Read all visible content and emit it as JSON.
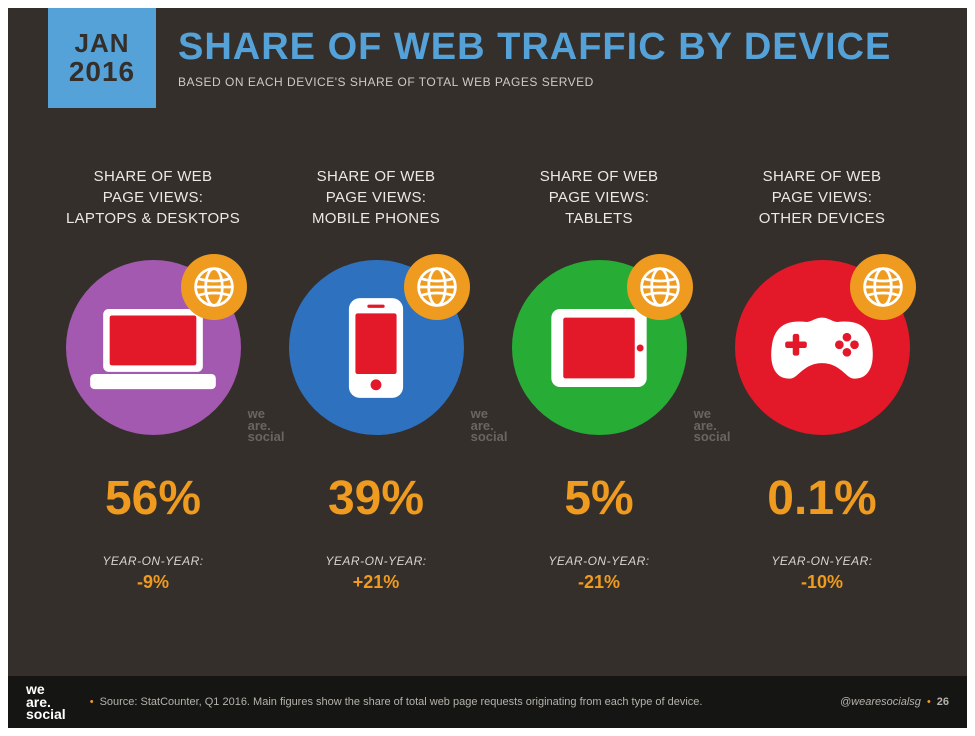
{
  "theme": {
    "background": "#352f2b",
    "accent": "#ee9b1f",
    "badge_bg": "#54a2d8"
  },
  "date_badge": {
    "month": "JAN",
    "year": "2016"
  },
  "header": {
    "title": "SHARE OF WEB TRAFFIC BY DEVICE",
    "subtitle": "BASED ON EACH DEVICE'S SHARE OF TOTAL WEB PAGES SERVED"
  },
  "yoy_label": "YEAR-ON-YEAR:",
  "watermark_lines": [
    "we",
    "are.",
    "social"
  ],
  "columns": [
    {
      "label": "SHARE OF WEB\nPAGE VIEWS:\nLAPTOPS & DESKTOPS",
      "circle_color": "#a359b0",
      "icon": "laptop",
      "value": "56%",
      "yoy": "-9%",
      "show_watermark": true
    },
    {
      "label": "SHARE OF WEB\nPAGE VIEWS:\nMOBILE PHONES",
      "circle_color": "#2e72bf",
      "icon": "phone",
      "value": "39%",
      "yoy": "+21%",
      "show_watermark": true
    },
    {
      "label": "SHARE OF WEB\nPAGE VIEWS:\nTABLETS",
      "circle_color": "#27ad36",
      "icon": "tablet",
      "value": "5%",
      "yoy": "-21%",
      "show_watermark": true
    },
    {
      "label": "SHARE OF WEB\nPAGE VIEWS:\nOTHER DEVICES",
      "circle_color": "#e3192a",
      "icon": "gamepad",
      "value": "0.1%",
      "yoy": "-10%",
      "show_watermark": false
    }
  ],
  "footer": {
    "logo_lines": [
      "we",
      "are.",
      "social"
    ],
    "source": "Source: StatCounter, Q1 2016. Main figures show the share of total web page requests originating from each type of device.",
    "handle": "@wearesocialsg",
    "page": "26"
  }
}
